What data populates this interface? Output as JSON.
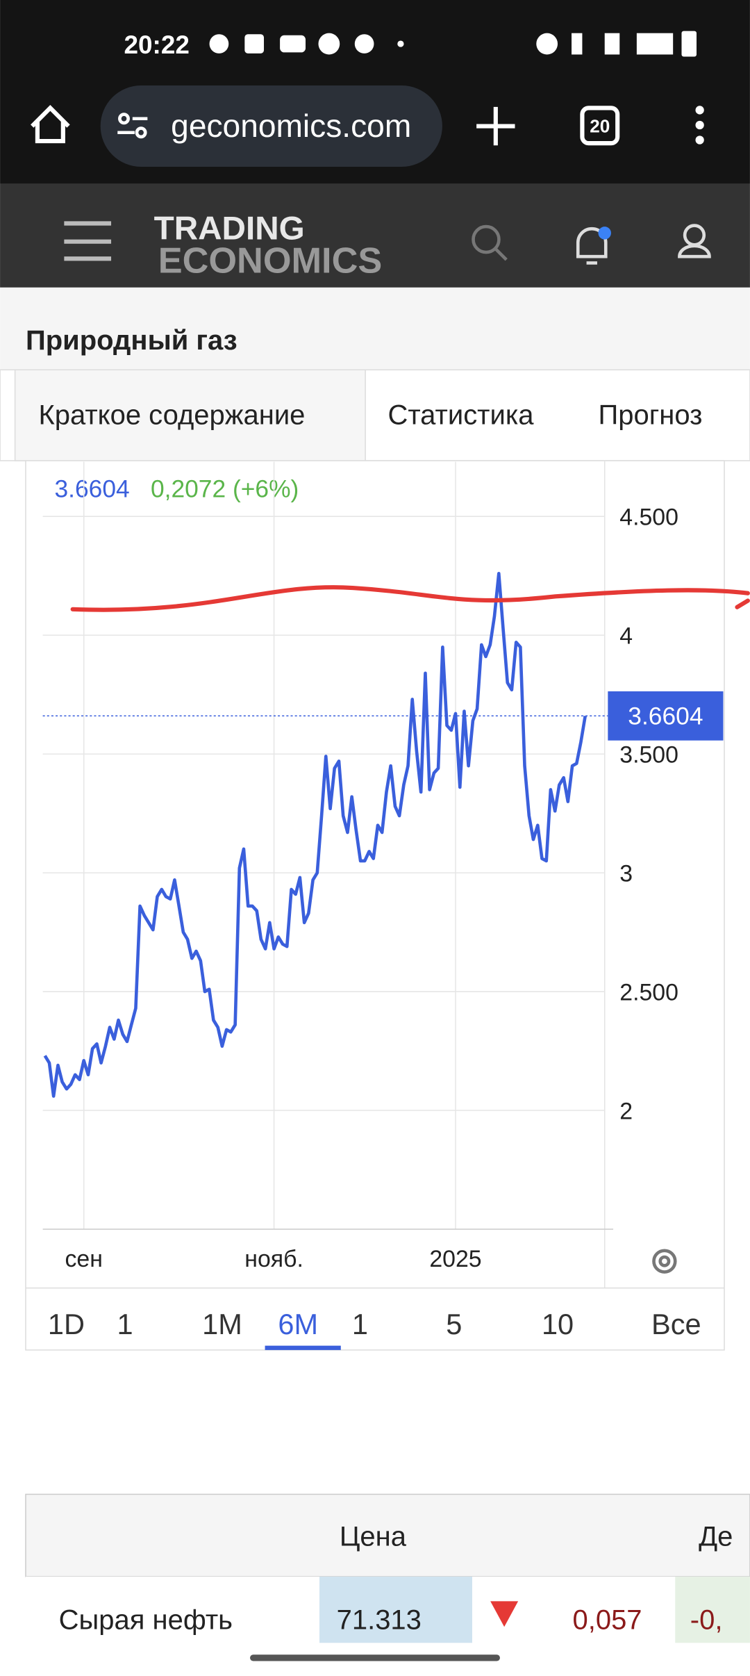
{
  "status_bar": {
    "time": "20:22"
  },
  "browser": {
    "url": "geconomics.com",
    "tab_count": "20"
  },
  "site": {
    "logo_top": "TRADING",
    "logo_bottom": "ECONOMICS"
  },
  "page_title": "Природный газ",
  "tabs": [
    "Краткое содержание",
    "Статистика",
    "Прогноз"
  ],
  "chart_data": {
    "type": "line",
    "change_label": "0,2072 (+6%)",
    "series": [
      {
        "color": "#3a5fdc",
        "values": [
          2.23,
          2.2,
          2.06,
          2.19,
          2.12,
          2.09,
          2.11,
          2.15,
          2.13,
          2.21,
          2.15,
          2.26,
          2.28,
          2.2,
          2.27,
          2.35,
          2.3,
          2.38,
          2.32,
          2.29,
          2.36,
          2.43,
          2.86,
          2.82,
          2.79,
          2.76,
          2.9,
          2.93,
          2.9,
          2.89,
          2.97,
          2.86,
          2.75,
          2.72,
          2.64,
          2.67,
          2.63,
          2.5,
          2.51,
          2.38,
          2.35,
          2.27,
          2.34,
          2.33,
          2.36,
          3.02,
          3.1,
          2.86,
          2.86,
          2.84,
          2.72,
          2.68,
          2.79,
          2.68,
          2.73,
          2.7,
          2.69,
          2.93,
          2.91,
          2.98,
          2.79,
          2.83,
          2.97,
          3.0,
          3.24,
          3.49,
          3.27,
          3.44,
          3.47,
          3.24,
          3.17,
          3.32,
          3.18,
          3.05,
          3.05,
          3.09,
          3.06,
          3.2,
          3.17,
          3.34,
          3.45,
          3.28,
          3.24,
          3.37,
          3.45,
          3.73,
          3.51,
          3.34,
          3.84,
          3.35,
          3.42,
          3.44,
          3.95,
          3.62,
          3.6,
          3.67,
          3.36,
          3.68,
          3.45,
          3.64,
          3.69,
          3.96,
          3.91,
          3.96,
          4.08,
          4.26,
          4.03,
          3.8,
          3.77,
          3.97,
          3.95,
          3.45,
          3.24,
          3.14,
          3.2,
          3.06,
          3.05,
          3.35,
          3.26,
          3.37,
          3.4,
          3.3,
          3.45,
          3.46,
          3.55,
          3.6604
        ]
      }
    ],
    "xlim": [
      -0.5,
      129.5
    ],
    "xticks": [
      {
        "value": 9,
        "label": "сен"
      },
      {
        "value": 53,
        "label": "нояб."
      },
      {
        "value": 95,
        "label": "2025"
      }
    ],
    "ylim": [
      1.5,
      4.73
    ],
    "yticks": [
      2,
      {
        "value": 2.5,
        "label": "2.500"
      },
      3,
      {
        "value": 3.5,
        "label": "3.500"
      },
      4,
      {
        "value": 4.5,
        "label": "4.500"
      }
    ],
    "grid": true
  },
  "ranges": [
    "1D",
    "1",
    "1M",
    "6M",
    "1",
    "5",
    "10",
    "Все"
  ],
  "table": {
    "header": [
      "Цена",
      "Де"
    ],
    "rows": [
      [
        "Сырая нефть",
        "71.313",
        "0,057",
        "-0,"
      ]
    ]
  }
}
